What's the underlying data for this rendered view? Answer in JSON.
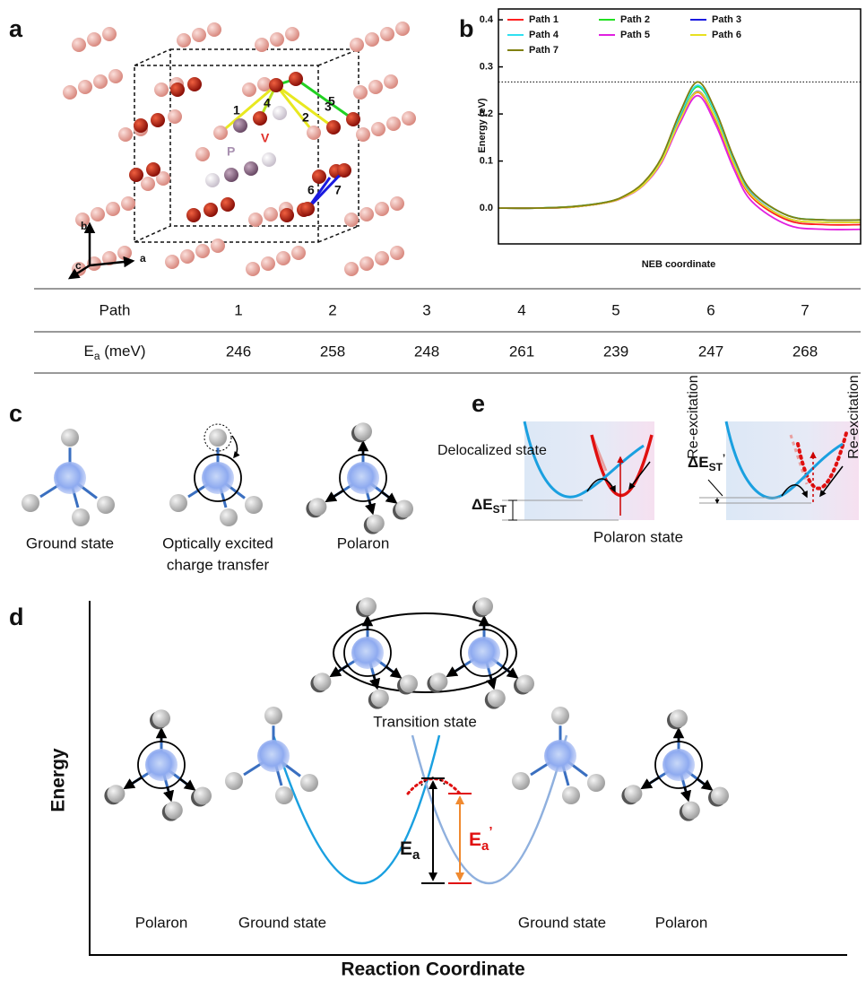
{
  "panel_labels": [
    "a",
    "b",
    "c",
    "d",
    "e"
  ],
  "panel_a": {
    "path_labels": [
      "1",
      "2",
      "3",
      "4",
      "5",
      "6",
      "7"
    ],
    "atom_labels": [
      "V",
      "P"
    ],
    "axis_labels": [
      "a",
      "b",
      "c"
    ]
  },
  "chart_data": {
    "type": "line",
    "xlabel": "NEB coordinate",
    "ylabel": "Energy (eV)",
    "x": [
      0,
      0.1,
      0.2,
      0.3,
      0.35,
      0.4,
      0.45,
      0.5,
      0.55,
      0.6,
      0.65,
      0.7,
      0.8,
      0.9,
      1.0
    ],
    "xlim": [
      0,
      1
    ],
    "ylim": [
      -0.076,
      0.423
    ],
    "yticks": [
      {
        "value": 0,
        "label": "0.0"
      },
      0.1,
      0.2,
      0.3,
      0.4
    ],
    "reference_line": 0.268,
    "series": [
      {
        "name": "Path 1",
        "color": "#ff2020",
        "values": [
          0,
          0,
          0.002,
          0.012,
          0.025,
          0.049,
          0.098,
          0.185,
          0.246,
          0.186,
          0.092,
          0.023,
          -0.026,
          -0.035,
          -0.035
        ]
      },
      {
        "name": "Path 2",
        "color": "#22e022",
        "values": [
          0,
          0,
          0.003,
          0.013,
          0.026,
          0.052,
          0.103,
          0.194,
          0.258,
          0.199,
          0.102,
          0.033,
          -0.016,
          -0.025,
          -0.025
        ]
      },
      {
        "name": "Path 3",
        "color": "#1a1ae0",
        "values": [
          0,
          0,
          0.002,
          0.012,
          0.025,
          0.05,
          0.099,
          0.186,
          0.248,
          0.189,
          0.095,
          0.027,
          -0.022,
          -0.03,
          -0.03
        ]
      },
      {
        "name": "Path 4",
        "color": "#30e0f0",
        "values": [
          0,
          0,
          0.003,
          0.013,
          0.026,
          0.052,
          0.104,
          0.196,
          0.261,
          0.201,
          0.103,
          0.033,
          -0.016,
          -0.025,
          -0.025
        ]
      },
      {
        "name": "Path 5",
        "color": "#e020e0",
        "values": [
          0,
          0,
          0.002,
          0.012,
          0.024,
          0.048,
          0.096,
          0.179,
          0.239,
          0.177,
          0.083,
          0.014,
          -0.036,
          -0.045,
          -0.045
        ]
      },
      {
        "name": "Path 6",
        "color": "#e8e020",
        "values": [
          0,
          0,
          0.002,
          0.012,
          0.025,
          0.049,
          0.099,
          0.185,
          0.247,
          0.189,
          0.094,
          0.026,
          -0.022,
          -0.03,
          -0.03
        ]
      },
      {
        "name": "Path 7",
        "color": "#808010",
        "values": [
          0,
          0,
          0.003,
          0.013,
          0.027,
          0.054,
          0.107,
          0.201,
          0.268,
          0.206,
          0.107,
          0.035,
          -0.016,
          -0.025,
          -0.025
        ]
      }
    ]
  },
  "table": {
    "header_label": "Path",
    "paths": [
      "1",
      "2",
      "3",
      "4",
      "5",
      "6",
      "7"
    ],
    "row_label": {
      "symbol": "E",
      "subscript": "a",
      "unit": " (meV)"
    },
    "values": [
      246,
      258,
      248,
      261,
      239,
      247,
      268
    ]
  },
  "panel_c": {
    "captions": [
      [
        "Ground state"
      ],
      [
        "Optically excited",
        "charge transfer"
      ],
      [
        "Polaron"
      ]
    ]
  },
  "panel_e": {
    "delocalized": "Delocalized state",
    "polaron_state": "Polaron state",
    "re_excitation": [
      "Re-excitation",
      "Re-excitation"
    ],
    "delta_est": {
      "symbol": "ΔE",
      "subscript": "ST"
    },
    "delta_est_prime": {
      "symbol": "ΔE",
      "subscript": "ST",
      "prime": "’"
    }
  },
  "panel_d": {
    "ylabel": "Energy",
    "xlabel": "Reaction Coordinate",
    "transition": "Transition state",
    "captions": [
      "Polaron",
      "Ground state",
      "Ground state",
      "Polaron"
    ],
    "ea": {
      "symbol": "E",
      "subscript": "a"
    },
    "ea_prime": {
      "symbol": "E",
      "subscript": "a",
      "prime": "’"
    }
  }
}
